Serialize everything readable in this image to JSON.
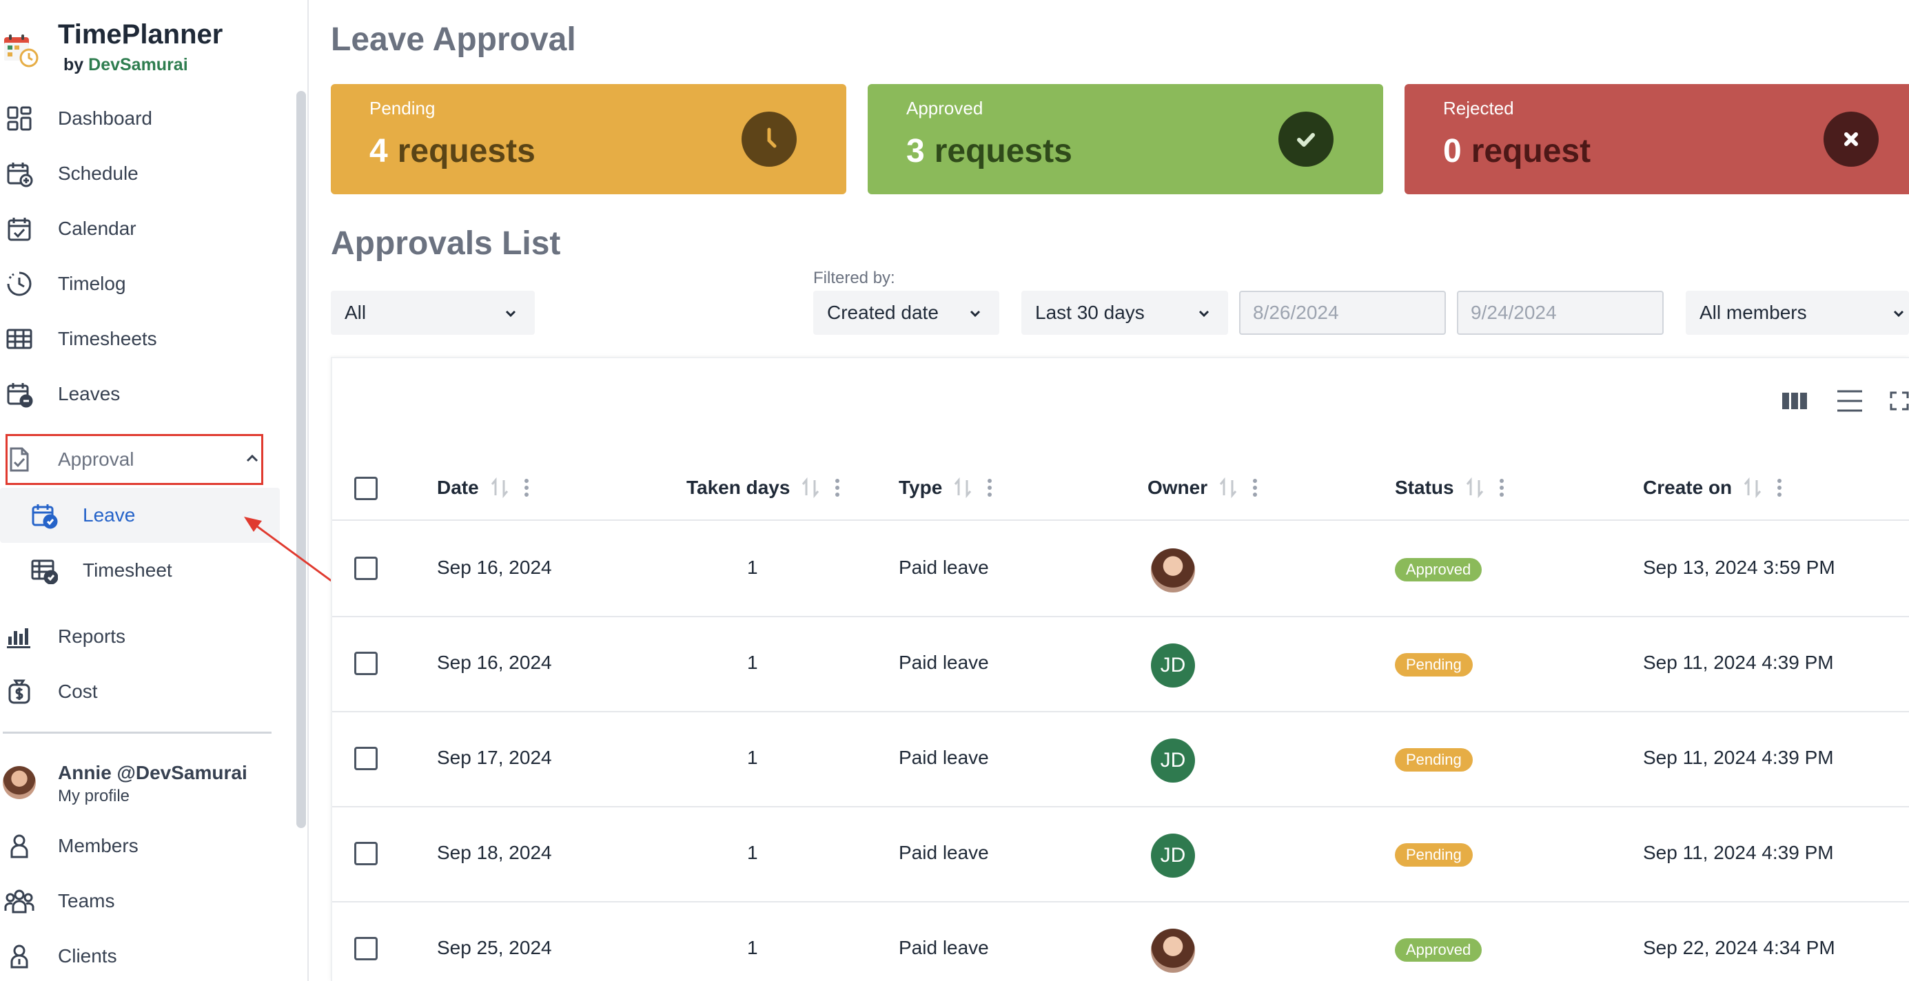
{
  "app": {
    "name": "TimePlanner",
    "by": "by",
    "company": "DevSamurai"
  },
  "sidebar": {
    "items": [
      {
        "label": "Dashboard",
        "icon": "dashboard-icon"
      },
      {
        "label": "Schedule",
        "icon": "schedule-icon"
      },
      {
        "label": "Calendar",
        "icon": "calendar-icon"
      },
      {
        "label": "Timelog",
        "icon": "timelog-icon"
      },
      {
        "label": "Timesheets",
        "icon": "timesheets-icon"
      },
      {
        "label": "Leaves",
        "icon": "leaves-icon"
      },
      {
        "label": "Approval",
        "icon": "approval-icon",
        "expanded": true
      },
      {
        "label": "Leave",
        "icon": "leave-approval-icon",
        "active": true
      },
      {
        "label": "Timesheet",
        "icon": "timesheet-approval-icon"
      },
      {
        "label": "Reports",
        "icon": "reports-icon"
      },
      {
        "label": "Cost",
        "icon": "cost-icon"
      }
    ],
    "profile": {
      "name": "Annie @DevSamurai",
      "link": "My profile"
    },
    "bottom_items": [
      {
        "label": "Members",
        "icon": "members-icon"
      },
      {
        "label": "Teams",
        "icon": "teams-icon"
      },
      {
        "label": "Clients",
        "icon": "clients-icon"
      }
    ]
  },
  "main": {
    "title": "Leave Approval",
    "cards": {
      "pending": {
        "label": "Pending",
        "count": "4",
        "unit": "requests",
        "color": "#e6ad45"
      },
      "approved": {
        "label": "Approved",
        "count": "3",
        "unit": "requests",
        "color": "#8bba5a"
      },
      "rejected": {
        "label": "Rejected",
        "count": "0",
        "unit": "request",
        "color": "#bf5450"
      }
    },
    "list_title": "Approvals List",
    "filters": {
      "status": "All",
      "filtered_by_label": "Filtered by:",
      "field": "Created date",
      "range": "Last 30 days",
      "date_from_placeholder": "8/26/2024",
      "date_to_placeholder": "9/24/2024",
      "members": "All members"
    },
    "table": {
      "columns": [
        "Date",
        "Taken days",
        "Type",
        "Owner",
        "Status",
        "Create on"
      ],
      "rows": [
        {
          "date": "Sep 16, 2024",
          "taken_days": "1",
          "type": "Paid leave",
          "owner": "",
          "owner_kind": "photo",
          "status": "Approved",
          "created": "Sep 13, 2024 3:59 PM"
        },
        {
          "date": "Sep 16, 2024",
          "taken_days": "1",
          "type": "Paid leave",
          "owner": "JD",
          "owner_kind": "initials",
          "status": "Pending",
          "created": "Sep 11, 2024 4:39 PM"
        },
        {
          "date": "Sep 17, 2024",
          "taken_days": "1",
          "type": "Paid leave",
          "owner": "JD",
          "owner_kind": "initials",
          "status": "Pending",
          "created": "Sep 11, 2024 4:39 PM"
        },
        {
          "date": "Sep 18, 2024",
          "taken_days": "1",
          "type": "Paid leave",
          "owner": "JD",
          "owner_kind": "initials",
          "status": "Pending",
          "created": "Sep 11, 2024 4:39 PM"
        },
        {
          "date": "Sep 25, 2024",
          "taken_days": "1",
          "type": "Paid leave",
          "owner": "",
          "owner_kind": "photo",
          "status": "Approved",
          "created": "Sep 22, 2024 4:34 PM"
        }
      ]
    }
  }
}
